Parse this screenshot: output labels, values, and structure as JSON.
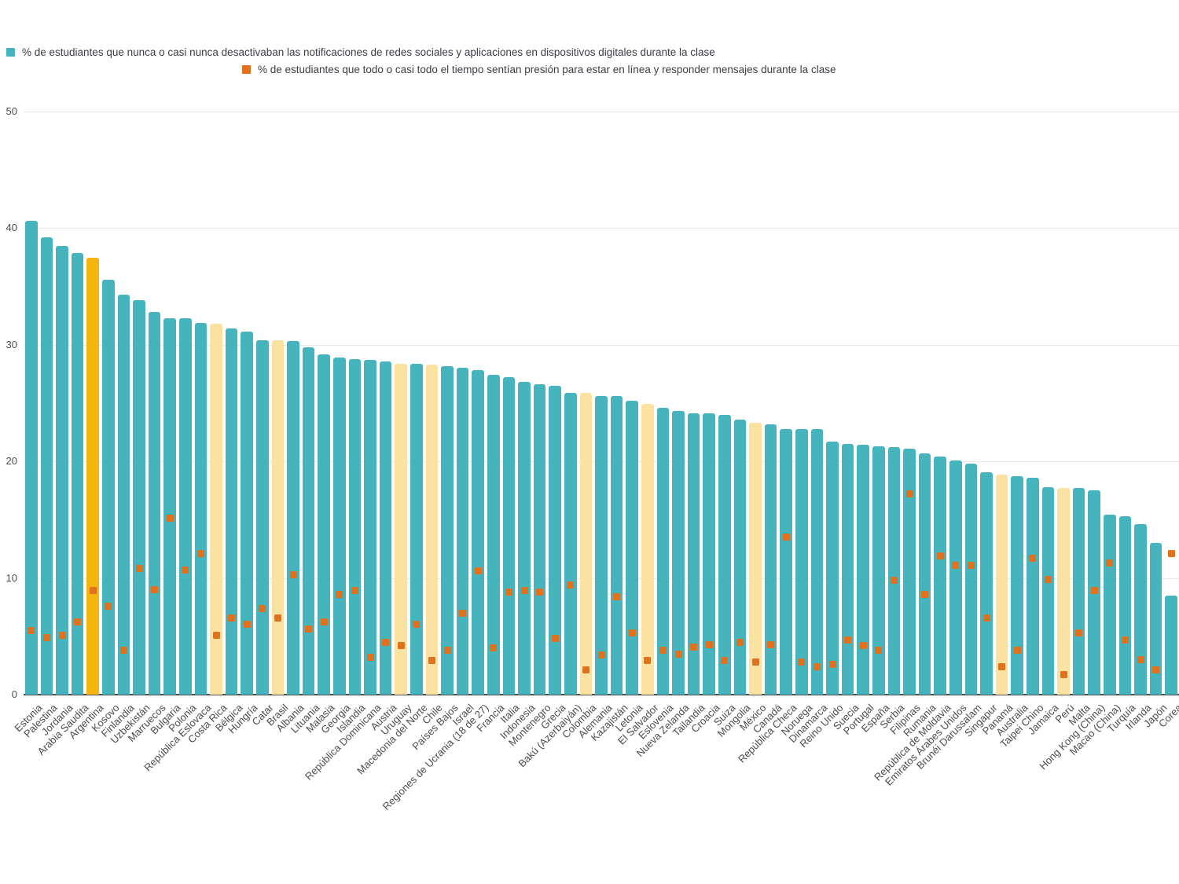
{
  "legend": [
    {
      "label": "% de estudiantes que nunca o casi nunca desactivaban las notificaciones de redes sociales y aplicaciones en dispositivos digitales durante la clase",
      "color": "#45b4bd"
    },
    {
      "label": "% de estudiantes que todo o casi todo el tiempo sentían presión para estar en línea y responder mensajes durante la clase",
      "color": "#e2711d"
    }
  ],
  "chart_data": {
    "type": "bar",
    "title": "",
    "xlabel": "",
    "ylabel": "",
    "ylim": [
      0,
      50
    ],
    "yticks": [
      0,
      10,
      20,
      30,
      40,
      50
    ],
    "grid": true,
    "legend_position": "top",
    "categories": [
      "Estonia",
      "Palestina",
      "Jordania",
      "Arabia Saudita",
      "Argentina",
      "Kosovo",
      "Finlandia",
      "Uzbekistán",
      "Marruecos",
      "Bulgaria",
      "Polonia",
      "República Eslovaca",
      "Costa Rica",
      "Bélgica",
      "Hungría",
      "Catar",
      "Brasil",
      "Albania",
      "Lituania",
      "Malasia",
      "Georgia",
      "Islandia",
      "República Dominicana",
      "Austria",
      "Uruguay",
      "Macedonia del Norte",
      "Chile",
      "Países Bajos",
      "Israel",
      "Regiones de Ucrania (18 de 27)",
      "Francia",
      "Italia",
      "Indonesia",
      "Montenegro",
      "Grecia",
      "Bakú (Azerbaiyán)",
      "Colombia",
      "Alemania",
      "Kazajistán",
      "Letonia",
      "El Salvador",
      "Eslovenia",
      "Nueva Zelanda",
      "Tailandia",
      "Croacia",
      "Suiza",
      "Mongolia",
      "México",
      "Canadá",
      "República Checa",
      "Noruega",
      "Dinamarca",
      "Reino Unido",
      "Suecia",
      "Portugal",
      "España",
      "Serbia",
      "Filipinas",
      "Rumania",
      "República de Moldavia",
      "Emiratos Árabes Unidos",
      "Brunéi Darussalam",
      "Singapur",
      "Panamá",
      "Australia",
      "Taipei Chino",
      "Jamaica",
      "Perú",
      "Malta",
      "Hong Kong (China)",
      "Macao (China)",
      "Turquía",
      "Irlanda",
      "Japón",
      "Corea"
    ],
    "series": [
      {
        "name": "% de estudiantes que nunca o casi nunca desactivaban las notificaciones de redes sociales y aplicaciones en dispositivos digitales durante la clase",
        "type": "bar",
        "values": [
          40.6,
          39.2,
          38.5,
          37.9,
          37.5,
          35.6,
          34.3,
          33.8,
          32.8,
          32.3,
          32.3,
          31.9,
          31.8,
          31.4,
          31.1,
          30.4,
          30.4,
          30.3,
          29.8,
          29.2,
          28.9,
          28.8,
          28.7,
          28.6,
          28.4,
          28.4,
          28.3,
          28.2,
          28.0,
          27.8,
          27.4,
          27.2,
          26.8,
          26.6,
          26.5,
          25.9,
          25.9,
          25.6,
          25.6,
          25.2,
          24.9,
          24.6,
          24.3,
          24.1,
          24.1,
          24.0,
          23.6,
          23.3,
          23.2,
          22.8,
          22.8,
          22.8,
          21.7,
          21.5,
          21.4,
          21.3,
          21.2,
          21.1,
          20.7,
          20.4,
          20.1,
          19.8,
          19.1,
          18.9,
          18.7,
          18.6,
          17.8,
          17.7,
          17.7,
          17.5,
          15.4,
          15.3,
          14.6,
          13.0,
          8.5
        ]
      },
      {
        "name": "% de estudiantes que todo o casi todo el tiempo sentían presión para estar en línea y responder mensajes durante la clase",
        "type": "scatter",
        "values": [
          5.5,
          4.9,
          5.1,
          6.2,
          8.9,
          7.6,
          3.8,
          10.8,
          9.0,
          15.1,
          10.7,
          12.1,
          5.1,
          6.6,
          6.0,
          7.4,
          6.6,
          10.3,
          5.6,
          6.2,
          8.6,
          8.9,
          3.2,
          4.5,
          4.2,
          6.0,
          2.9,
          3.8,
          7.0,
          10.6,
          4.0,
          8.8,
          8.9,
          8.8,
          4.8,
          9.4,
          2.1,
          3.4,
          8.4,
          5.3,
          2.9,
          3.8,
          3.5,
          4.1,
          4.3,
          2.9,
          4.5,
          2.8,
          4.3,
          13.5,
          2.8,
          2.4,
          2.6,
          4.7,
          4.2,
          3.8,
          9.8,
          17.2,
          8.6,
          11.9,
          11.1,
          11.1,
          6.6,
          2.4,
          3.8,
          11.7,
          9.9,
          1.7,
          5.3,
          8.9,
          11.3,
          4.7,
          3.0,
          2.1,
          12.1
        ]
      }
    ],
    "highlight_gold": [
      "Argentina"
    ],
    "highlight_cream": [
      "Costa Rica",
      "Brasil",
      "Uruguay",
      "Chile",
      "Colombia",
      "El Salvador",
      "México",
      "Panamá",
      "Perú"
    ],
    "colors": {
      "bar": "#45b4bd",
      "bar_gold": "#f6b40e",
      "bar_cream": "#fbe2a0",
      "marker": "#e2711d",
      "grid": "#e8e8e8",
      "axis": "#4c4c4c",
      "tick_text": "#4c4c4c",
      "legend_text": "#3d3d46"
    }
  }
}
